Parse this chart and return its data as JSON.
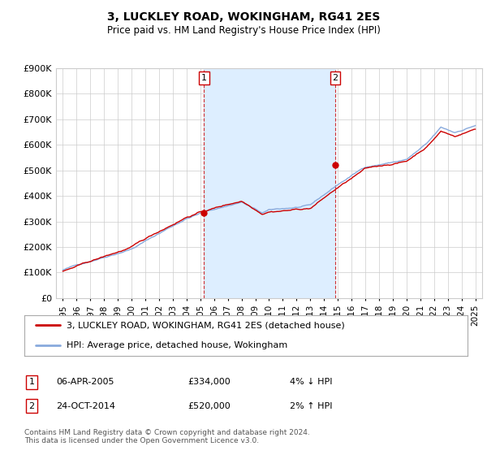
{
  "title": "3, LUCKLEY ROAD, WOKINGHAM, RG41 2ES",
  "subtitle": "Price paid vs. HM Land Registry's House Price Index (HPI)",
  "ylim": [
    0,
    900000
  ],
  "yticks": [
    0,
    100000,
    200000,
    300000,
    400000,
    500000,
    600000,
    700000,
    800000,
    900000
  ],
  "legend_house": "3, LUCKLEY ROAD, WOKINGHAM, RG41 2ES (detached house)",
  "legend_hpi": "HPI: Average price, detached house, Wokingham",
  "transaction1_label": "1",
  "transaction1_date": "06-APR-2005",
  "transaction1_price": "£334,000",
  "transaction1_hpi": "4% ↓ HPI",
  "transaction2_label": "2",
  "transaction2_date": "24-OCT-2014",
  "transaction2_price": "£520,000",
  "transaction2_hpi": "2% ↑ HPI",
  "footnote": "Contains HM Land Registry data © Crown copyright and database right 2024.\nThis data is licensed under the Open Government Licence v3.0.",
  "line_color_house": "#cc0000",
  "line_color_hpi": "#88aadd",
  "shade_color": "#ddeeff",
  "dashed_line_color": "#cc0000",
  "marker_color": "#cc0000",
  "background_color": "#ffffff",
  "grid_color": "#cccccc",
  "trans1_x_year": 2005.27,
  "trans1_y": 334000,
  "trans2_x_year": 2014.81,
  "trans2_y": 520000,
  "xlim_left": 1994.5,
  "xlim_right": 2025.5,
  "xtick_years": [
    1995,
    1996,
    1997,
    1998,
    1999,
    2000,
    2001,
    2002,
    2003,
    2004,
    2005,
    2006,
    2007,
    2008,
    2009,
    2010,
    2011,
    2012,
    2013,
    2014,
    2015,
    2016,
    2017,
    2018,
    2019,
    2020,
    2021,
    2022,
    2023,
    2024,
    2025
  ]
}
